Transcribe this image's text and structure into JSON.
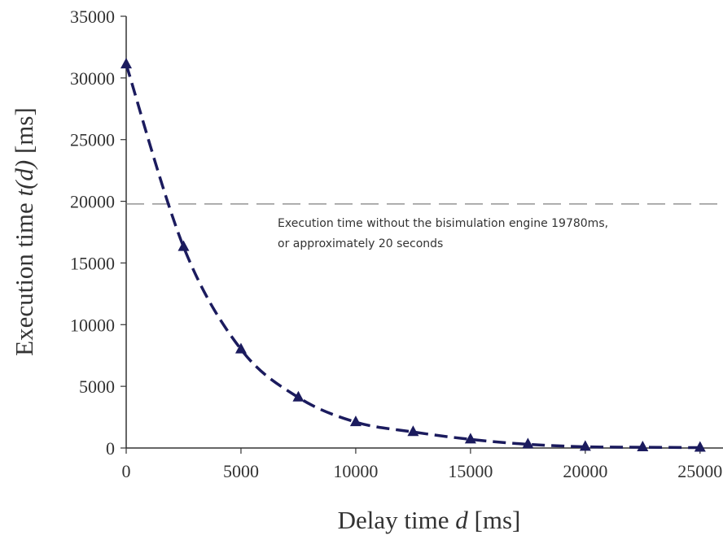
{
  "chart_data": {
    "type": "line",
    "title": "",
    "xlabel": {
      "prefix": "Delay time ",
      "var": "d",
      "suffix": " [ms]"
    },
    "ylabel": {
      "prefix": "Execution time ",
      "var": "t(d)",
      "suffix": " [ms]"
    },
    "xlim": [
      0,
      26000
    ],
    "ylim": [
      0,
      35000
    ],
    "xticks": [
      0,
      5000,
      10000,
      15000,
      20000,
      25000
    ],
    "yticks": [
      0,
      5000,
      10000,
      15000,
      20000,
      25000,
      30000,
      35000
    ],
    "grid": false,
    "series": [
      {
        "color": "#1b1b5e",
        "marker": "triangle",
        "line_style": "dashed",
        "x": [
          0,
          2500,
          5000,
          7500,
          10000,
          12500,
          15000,
          17500,
          20000,
          22500,
          25000
        ],
        "y": [
          31100,
          16300,
          8000,
          4100,
          2100,
          1300,
          700,
          300,
          100,
          60,
          30
        ]
      }
    ],
    "reference_line": {
      "y": 19780,
      "color": "#7f7f7f",
      "line_style": "dashed"
    },
    "annotation": {
      "lines": [
        "Execution time without the bisimulation engine 19780ms,",
        "or approximately 20 seconds"
      ]
    }
  }
}
